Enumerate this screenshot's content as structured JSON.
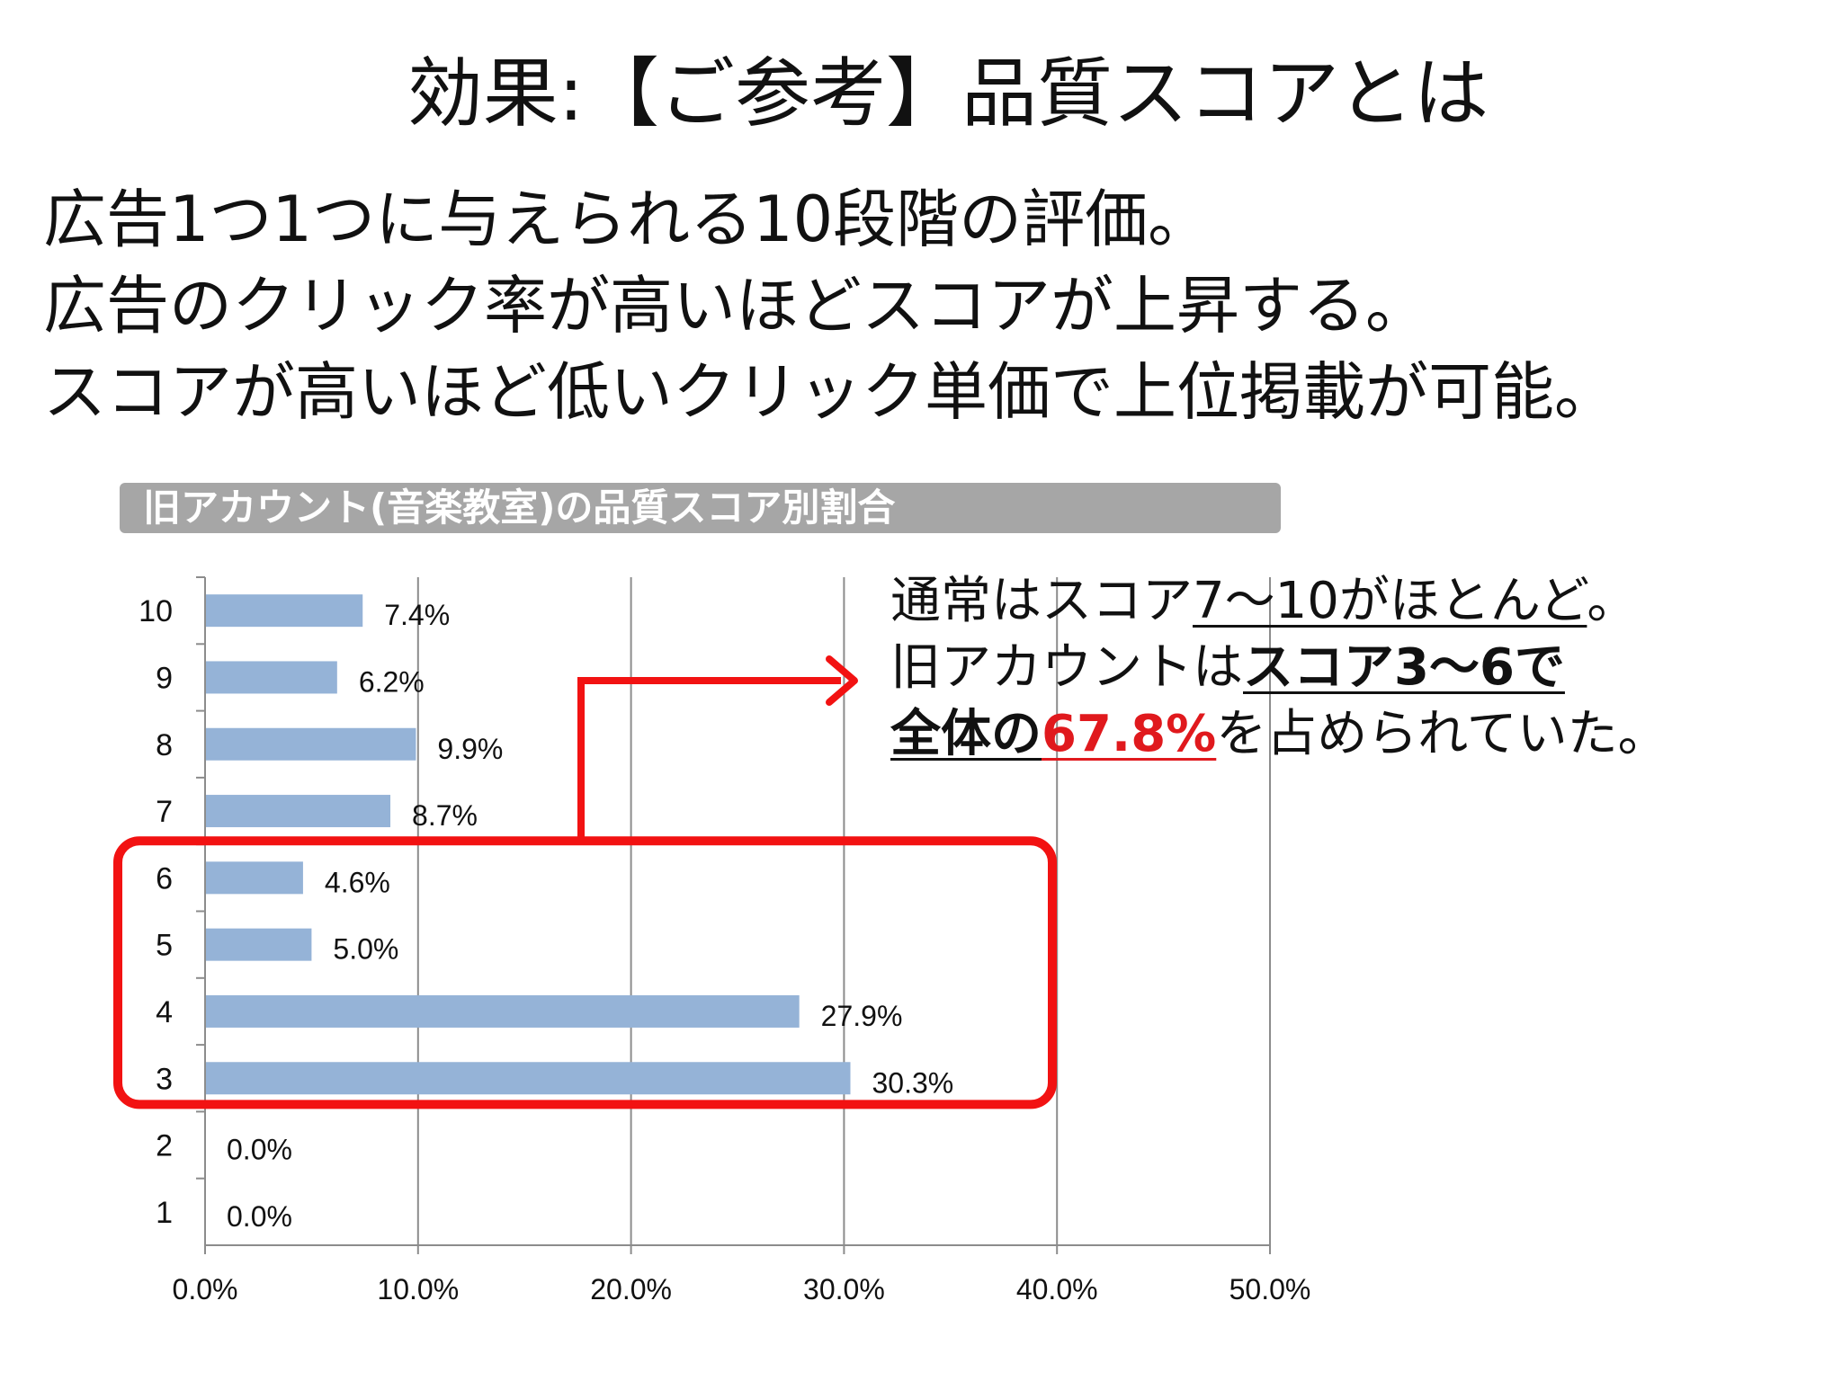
{
  "slide": {
    "title": "効果:【ご参考】品質スコアとは",
    "intro_lines": [
      "広告1つ1つに与えられる10段階の評価。",
      "広告のクリック率が高いほどスコアが上昇する。",
      "スコアが高いほど低いクリック単価で上位掲載が可能。"
    ]
  },
  "callout": {
    "line1_prefix": "通常はスコア",
    "line1_highlight": "7～10がほとんど",
    "line1_suffix": "。",
    "line2_prefix": "旧アカウントは",
    "line2_highlight": "スコア3～6で",
    "line3_underline": "全体の",
    "line3_percent": "67.8%",
    "line3_suffix": "を占められていた。"
  },
  "chart_data": {
    "type": "bar",
    "orientation": "horizontal",
    "title": "旧アカウント(音楽教室)の品質スコア別割合",
    "categories": [
      "10",
      "9",
      "8",
      "7",
      "6",
      "5",
      "4",
      "3",
      "2",
      "1"
    ],
    "values": [
      7.4,
      6.2,
      9.9,
      8.7,
      4.6,
      5.0,
      27.9,
      30.3,
      0.0,
      0.0
    ],
    "value_labels": [
      "7.4%",
      "6.2%",
      "9.9%",
      "8.7%",
      "4.6%",
      "5.0%",
      "27.9%",
      "30.3%",
      "0.0%",
      "0.0%"
    ],
    "x_ticks": [
      "0.0%",
      "10.0%",
      "20.0%",
      "30.0%",
      "40.0%",
      "50.0%"
    ],
    "xlim": [
      0,
      50
    ],
    "grid": true,
    "bar_color": "#95b3d7",
    "highlight": {
      "categories": [
        "6",
        "5",
        "4",
        "3"
      ],
      "color": "#f21212"
    }
  }
}
